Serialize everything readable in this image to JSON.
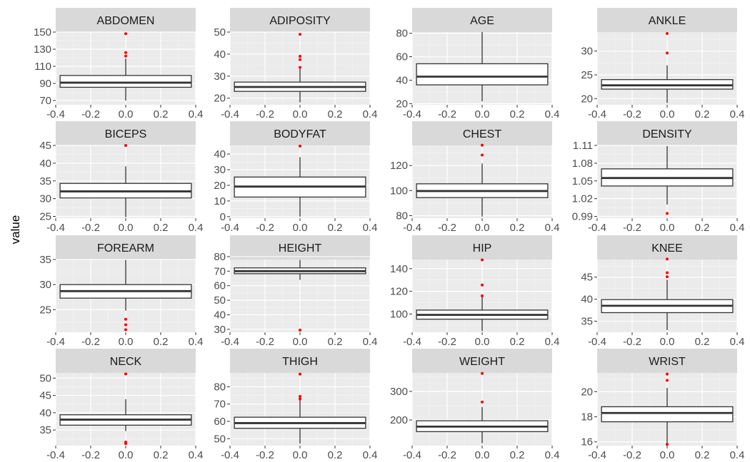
{
  "chart_data": {
    "type": "boxplot",
    "layout": {
      "rows": 4,
      "cols": 4
    },
    "ylabel": "value",
    "xlabel": "",
    "x_axis": {
      "range": [
        -0.4,
        0.4
      ],
      "ticks": [
        "-0.4",
        "-0.2",
        "0.0",
        "0.2",
        "0.4"
      ]
    },
    "grid": true,
    "colors": {
      "panel": "#ebebeb",
      "strip": "#d9d9d9",
      "grid_major": "#ffffff",
      "grid_minor": "#f5f5f5",
      "box": "#333333",
      "outlier": "#ff0000",
      "tick_text": "#4d4d4d"
    },
    "panels": [
      {
        "name": "ABDOMEN",
        "ylim": [
          65,
          150
        ],
        "yticks": [
          70,
          90,
          110,
          130,
          150
        ],
        "decimals": 0,
        "box": {
          "min": 70,
          "q1": 85.5,
          "median": 90.9,
          "q3": 99.3,
          "max": 119
        },
        "outliers": [
          122,
          126,
          148.1
        ]
      },
      {
        "name": "ADIPOSITY",
        "ylim": [
          17,
          50
        ],
        "yticks": [
          20,
          30,
          40,
          50
        ],
        "decimals": 0,
        "box": {
          "min": 18.1,
          "q1": 23.1,
          "median": 25.1,
          "q3": 27.3,
          "max": 33.3
        },
        "outliers": [
          34,
          37.5,
          39,
          49
        ]
      },
      {
        "name": "AGE",
        "ylim": [
          19,
          81
        ],
        "yticks": [
          20,
          40,
          60,
          80
        ],
        "decimals": 0,
        "box": {
          "min": 22,
          "q1": 36,
          "median": 43,
          "q3": 54,
          "max": 81
        },
        "outliers": []
      },
      {
        "name": "ANKLE",
        "ylim": [
          18.7,
          34
        ],
        "yticks": [
          20,
          25,
          30
        ],
        "decimals": 0,
        "box": {
          "min": 19.1,
          "q1": 22,
          "median": 22.8,
          "q3": 24,
          "max": 27
        },
        "outliers": [
          29.6,
          33.7
        ]
      },
      {
        "name": "BICEPS",
        "ylim": [
          24.5,
          45
        ],
        "yticks": [
          25,
          30,
          35,
          40,
          45
        ],
        "decimals": 0,
        "box": {
          "min": 24.8,
          "q1": 30.2,
          "median": 32.05,
          "q3": 34.3,
          "max": 39.1
        },
        "outliers": [
          45
        ]
      },
      {
        "name": "BODYFAT",
        "ylim": [
          -1,
          45.5
        ],
        "yticks": [
          0,
          10,
          20,
          30,
          40
        ],
        "decimals": 0,
        "box": {
          "min": 0,
          "q1": 12.5,
          "median": 19.2,
          "q3": 25.3,
          "max": 38
        },
        "outliers": [
          45.1
        ]
      },
      {
        "name": "CHEST",
        "ylim": [
          78,
          136
        ],
        "yticks": [
          80,
          100,
          120
        ],
        "decimals": 0,
        "box": {
          "min": 79.3,
          "q1": 94.4,
          "median": 99.65,
          "q3": 105.4,
          "max": 121.6
        },
        "outliers": [
          128.3,
          136.2
        ]
      },
      {
        "name": "DENSITY",
        "ylim": [
          0.987,
          1.11
        ],
        "yticks": [
          0.99,
          1.02,
          1.05,
          1.08,
          1.11
        ],
        "decimals": 2,
        "box": {
          "min": 1.0101,
          "q1": 1.0414,
          "median": 1.0549,
          "q3": 1.0704,
          "max": 1.1089
        },
        "outliers": [
          0.995
        ]
      },
      {
        "name": "FOREARM",
        "ylim": [
          20.5,
          35
        ],
        "yticks": [
          25,
          30,
          35
        ],
        "decimals": 0,
        "box": {
          "min": 24.8,
          "q1": 27.3,
          "median": 28.7,
          "q3": 30,
          "max": 34.9
        },
        "outliers": [
          21,
          22,
          23.1
        ]
      },
      {
        "name": "HEIGHT",
        "ylim": [
          28,
          78
        ],
        "yticks": [
          30,
          40,
          50,
          60,
          70,
          80
        ],
        "decimals": 0,
        "box": {
          "min": 64,
          "q1": 68.25,
          "median": 70,
          "q3": 72.25,
          "max": 77.75
        },
        "outliers": [
          29.5
        ]
      },
      {
        "name": "HIP",
        "ylim": [
          84,
          148
        ],
        "yticks": [
          100,
          120,
          140
        ],
        "decimals": 0,
        "box": {
          "min": 85,
          "q1": 95.5,
          "median": 99.3,
          "q3": 103.5,
          "max": 115.5
        },
        "outliers": [
          116.1,
          125.6,
          147.7
        ]
      },
      {
        "name": "KNEE",
        "ylim": [
          32.5,
          49
        ],
        "yticks": [
          35,
          40,
          45
        ],
        "decimals": 0,
        "box": {
          "min": 33,
          "q1": 36.95,
          "median": 38.5,
          "q3": 39.9,
          "max": 44.4
        },
        "outliers": [
          45.1,
          46,
          49.1
        ]
      },
      {
        "name": "NECK",
        "ylim": [
          30.5,
          51.5
        ],
        "yticks": [
          35,
          40,
          45,
          50
        ],
        "decimals": 0,
        "box": {
          "min": 34.7,
          "q1": 36.4,
          "median": 38,
          "q3": 39.4,
          "max": 43.9
        },
        "outliers": [
          31.1,
          31.5,
          51.2
        ]
      },
      {
        "name": "THIGH",
        "ylim": [
          46,
          88
        ],
        "yticks": [
          50,
          60,
          70,
          80
        ],
        "decimals": 0,
        "box": {
          "min": 47.2,
          "q1": 56,
          "median": 59,
          "q3": 62.4,
          "max": 72.5
        },
        "outliers": [
          72.9,
          74.4,
          87.3
        ]
      },
      {
        "name": "WEIGHT",
        "ylim": [
          110,
          365
        ],
        "yticks": [
          200,
          300
        ],
        "decimals": 0,
        "box": {
          "min": 118.5,
          "q1": 159,
          "median": 176.5,
          "q3": 197,
          "max": 245
        },
        "outliers": [
          262.8,
          363.2
        ]
      },
      {
        "name": "WRIST",
        "ylim": [
          15.7,
          21.5
        ],
        "yticks": [
          16,
          18,
          20
        ],
        "decimals": 0,
        "box": {
          "min": 15.8,
          "q1": 17.6,
          "median": 18.3,
          "q3": 18.8,
          "max": 20.3
        },
        "outliers": [
          15.8,
          20.9,
          21.4
        ]
      }
    ]
  }
}
